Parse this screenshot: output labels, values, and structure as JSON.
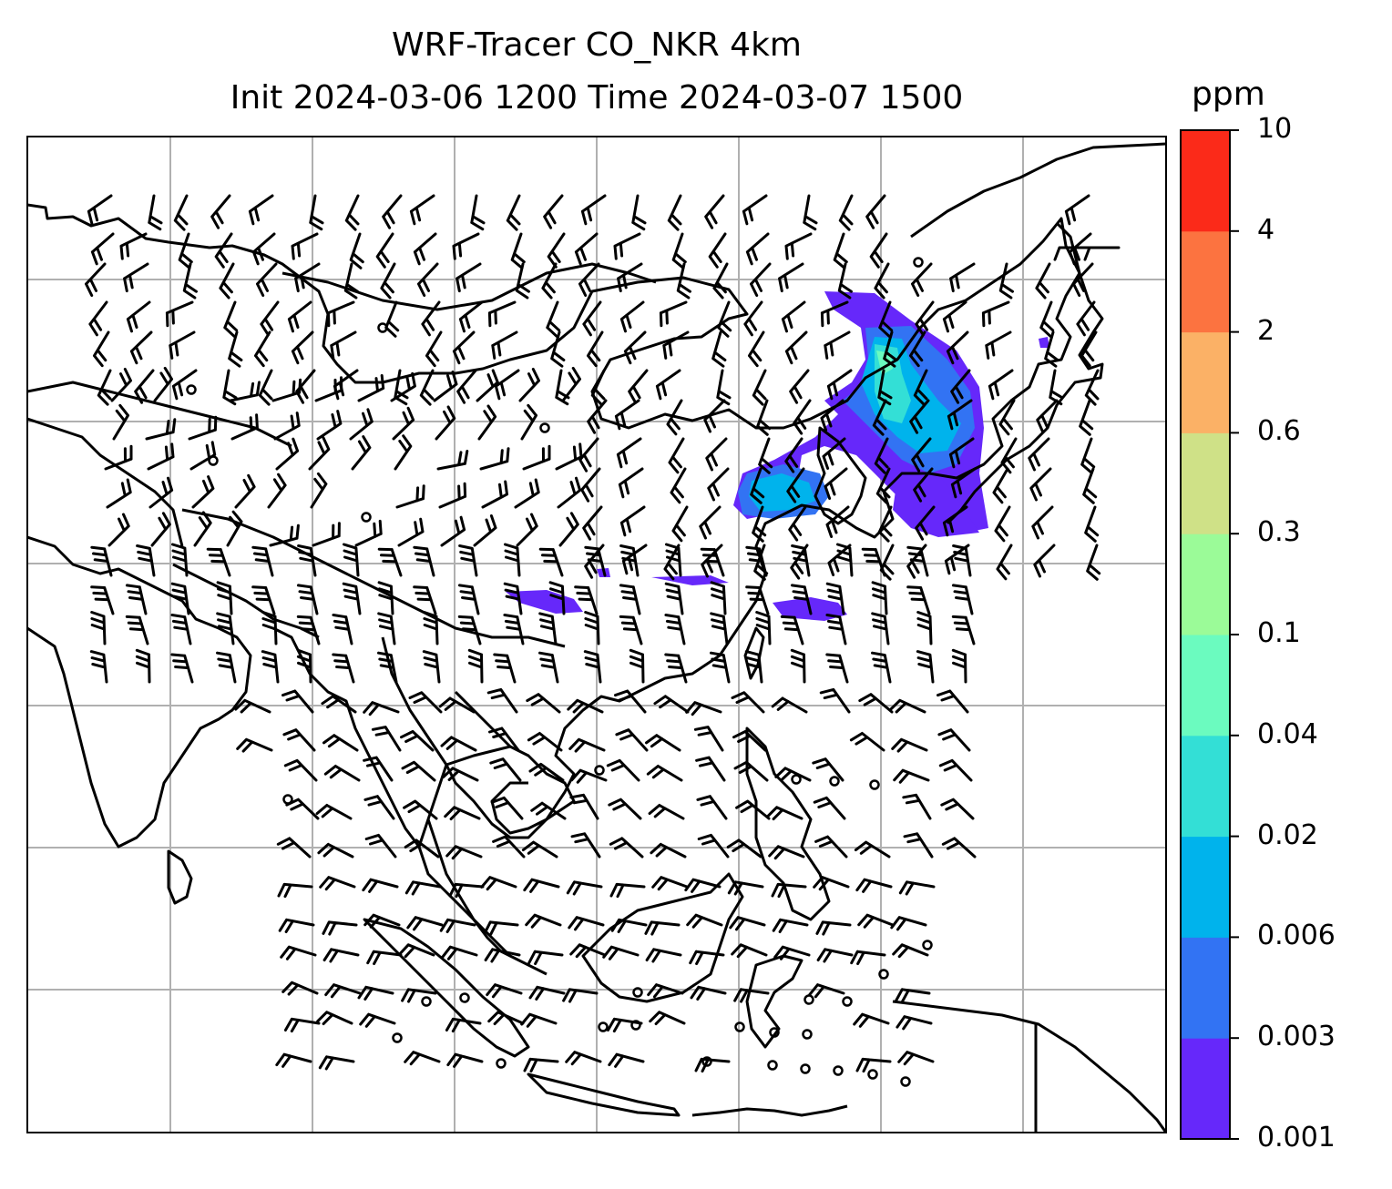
{
  "title": {
    "line1": "WRF-Tracer CO_NKR 4km",
    "line2": "Init 2024-03-06 1200 Time 2024-03-07 1500"
  },
  "colorbar": {
    "unit": "ppm",
    "levels": [
      "0.001",
      "0.003",
      "0.006",
      "0.02",
      "0.04",
      "0.1",
      "0.3",
      "0.6",
      "2",
      "4",
      "10"
    ],
    "colors": [
      "#6628fa",
      "#3273f3",
      "#00b3ec",
      "#33dfd6",
      "#6bfbbf",
      "#9bfb98",
      "#cfe187",
      "#fbb166",
      "#fc7340",
      "#fb2a19"
    ]
  },
  "map": {
    "layers": [
      "coastlines",
      "country-borders",
      "lat-lon-gridlines",
      "wind-barbs",
      "co-tracer-concentration"
    ],
    "gridline_color": "#b0b0b0",
    "plume_colors_used": [
      "#6628fa",
      "#3273f3",
      "#00b3ec",
      "#33dfd6",
      "#6bfbbf"
    ]
  }
}
